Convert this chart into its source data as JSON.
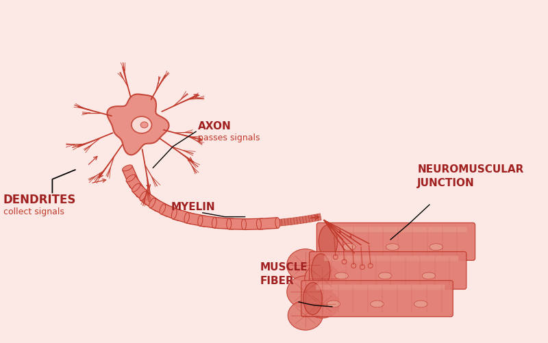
{
  "background_color": "#fce8e4",
  "draw_color": "#c0392b",
  "draw_color_light": "#e8857a",
  "draw_color_medium": "#d4655a",
  "text_color_bold": "#a02020",
  "figsize": [
    8.0,
    5.01
  ],
  "dpi": 100,
  "labels": {
    "dendrites": "DENDRITES",
    "dendrites_sub": "collect signals",
    "axon": "AXON",
    "axon_sub": "passes signals",
    "myelin": "MYELIN",
    "neuromuscular": "NEUROMUSCULAR\nJUNCTION",
    "muscle": "MUSCLE\nFIBER"
  }
}
